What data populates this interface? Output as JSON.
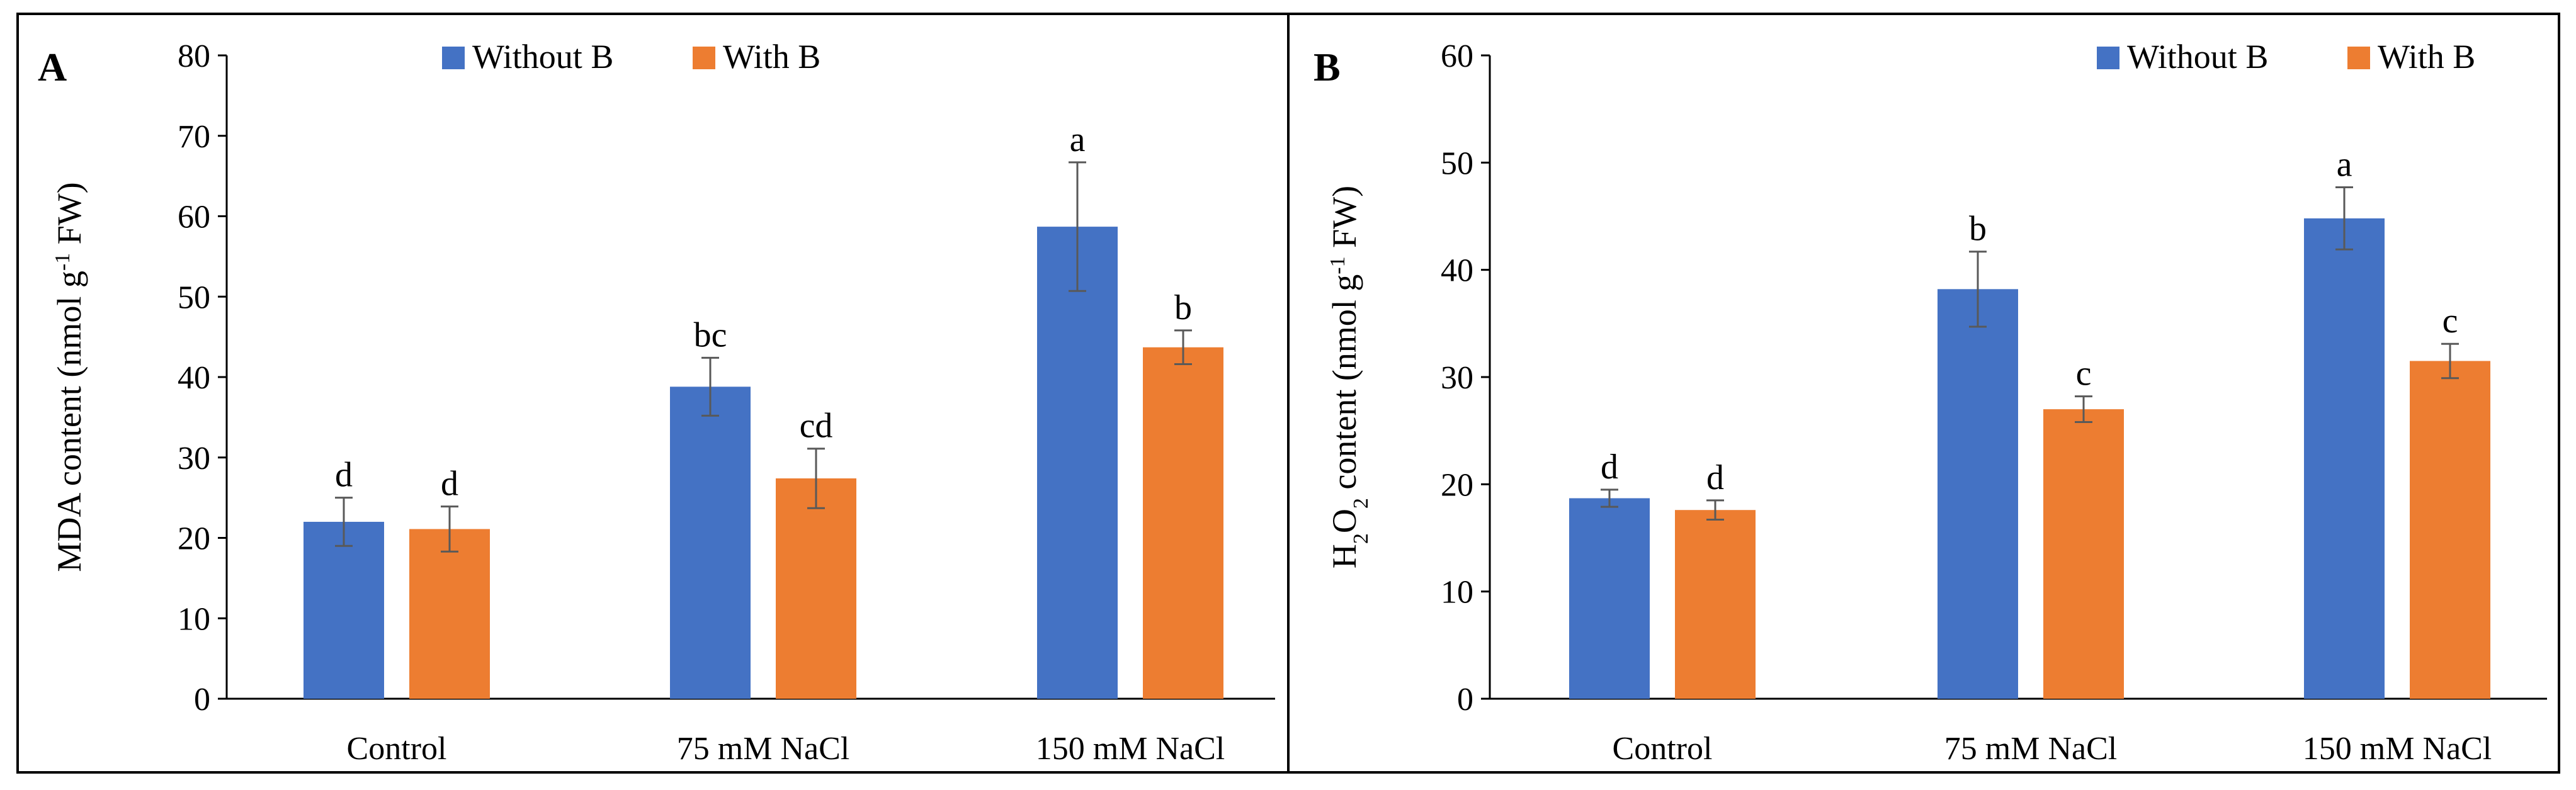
{
  "colors": {
    "without_b": "#4472C4",
    "with_b": "#ED7D31",
    "frame": "#000000",
    "axis": "#000000",
    "error_bar": "#595959"
  },
  "chart_data": [
    {
      "type": "bar",
      "panel_label": "A",
      "categories": [
        "Control",
        "75 mM NaCl",
        "150 mM NaCl"
      ],
      "ylabel": {
        "main": "MDA content (nmol g",
        "sup": "-1",
        "end": " FW)"
      },
      "ylim": [
        0,
        80
      ],
      "yticks": [
        "0",
        "10",
        "20",
        "30",
        "40",
        "50",
        "60",
        "70",
        "80"
      ],
      "grid": false,
      "legend": {
        "position": "top-center",
        "entries": [
          "Without B",
          "With B"
        ]
      },
      "series": [
        {
          "name": "Without B",
          "values": [
            22,
            38.8,
            58.7
          ],
          "errors": [
            3,
            3.6,
            8
          ],
          "letters": [
            "d",
            "bc",
            "a"
          ]
        },
        {
          "name": "With B",
          "values": [
            21.1,
            27.4,
            43.7
          ],
          "errors": [
            2.8,
            3.7,
            2.1
          ],
          "letters": [
            "d",
            "cd",
            "b"
          ]
        }
      ]
    },
    {
      "type": "bar",
      "panel_label": "B",
      "categories": [
        "Control",
        "75 mM NaCl",
        "150 mM NaCl"
      ],
      "ylabel": {
        "main": "H",
        "sub1": "2",
        "mid": "O",
        "sub2": "2",
        "rest": " content (nmol g",
        "sup": "-1",
        "end": " FW)"
      },
      "ylim": [
        0,
        60
      ],
      "yticks": [
        "0",
        "10",
        "20",
        "30",
        "40",
        "50",
        "60"
      ],
      "grid": false,
      "legend": {
        "position": "top-right",
        "entries": [
          "Without B",
          "With B"
        ]
      },
      "series": [
        {
          "name": "Without B",
          "values": [
            18.7,
            38.2,
            44.8
          ],
          "errors": [
            0.8,
            3.5,
            2.9
          ],
          "letters": [
            "d",
            "b",
            "a"
          ]
        },
        {
          "name": "With B",
          "values": [
            17.6,
            27,
            31.5
          ],
          "errors": [
            0.9,
            1.2,
            1.6
          ],
          "letters": [
            "d",
            "c",
            "c"
          ]
        }
      ]
    }
  ]
}
